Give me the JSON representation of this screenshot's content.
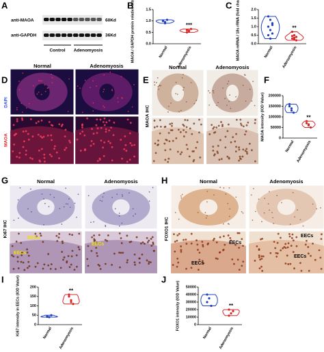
{
  "figure": {
    "letters": [
      "A",
      "B",
      "C",
      "D",
      "E",
      "F",
      "G",
      "H",
      "I",
      "J"
    ],
    "blot": {
      "bands": [
        "anti-MAOA",
        "anti-GAPDH"
      ],
      "sizes": [
        "60Kd",
        "36Kd"
      ],
      "groups": [
        "Control",
        "Adenomyosis"
      ]
    },
    "images": [
      {
        "columns": [
          "Normal",
          "Adenomyosis"
        ],
        "stain": [
          "DAPI",
          "MAOA"
        ]
      },
      {
        "columns": [
          "Normal",
          "Adenomyosis"
        ],
        "stain": [
          "MAOA IHC"
        ]
      },
      {
        "columns": [
          "Normal",
          "Adenomyosis"
        ],
        "stain": [
          "Ki67 IHC"
        ],
        "labels": [
          "EECs",
          "EECs",
          "EECs"
        ]
      },
      {
        "columns": [
          "Normal",
          "Adenomyosis"
        ],
        "stain": [
          "FOXO1 IHC"
        ],
        "labels": [
          "EECs",
          "EECs",
          "EECs",
          "EECs"
        ]
      }
    ]
  },
  "chart_data": [
    {
      "type": "violin",
      "ylabel": "MAOA / GAPDH protein relative intensity",
      "categories": [
        "Normal",
        "Adenomyosis"
      ],
      "colors": [
        "#1f3fbf",
        "#d62728"
      ],
      "values": [
        [
          1.0,
          0.95,
          1.05,
          1.0,
          0.9
        ],
        [
          0.6,
          0.55,
          0.65,
          0.5,
          0.58
        ]
      ],
      "ylim": [
        0,
        1.5
      ],
      "yticks": [
        {
          "value": 0,
          "label": "0.0"
        },
        0.5,
        {
          "value": 1,
          "label": "1.0"
        },
        1.5
      ],
      "annotation": "***"
    },
    {
      "type": "violin",
      "ylabel": "MAOA mRNA / 18s rRNA (fold change)",
      "categories": [
        "Normal",
        "Adenomyosis"
      ],
      "colors": [
        "#1f3fbf",
        "#d62728"
      ],
      "values": [
        [
          1.6,
          1.4,
          1.2,
          1.0,
          0.8,
          0.6,
          0.5,
          0.3,
          1.1
        ],
        [
          0.7,
          0.5,
          0.4,
          0.3,
          0.25,
          0.2,
          0.45,
          0.35
        ]
      ],
      "ylim": [
        0,
        2
      ],
      "yticks": [
        {
          "value": 0,
          "label": "0.0"
        },
        0.5,
        {
          "value": 1,
          "label": "1.0"
        },
        1.5,
        {
          "value": 2,
          "label": "2.0"
        }
      ],
      "annotation": "**"
    },
    {
      "type": "violin",
      "ylabel": "MAOA intensity (IOD Value)",
      "categories": [
        "Normal",
        "Adenomyosis"
      ],
      "colors": [
        "#1f3fbf",
        "#d62728"
      ],
      "values": [
        [
          150000,
          140000,
          120000,
          160000,
          130000
        ],
        [
          70000,
          60000,
          50000,
          80000,
          65000
        ]
      ],
      "ylim": [
        0,
        200000
      ],
      "yticks": [
        0,
        50000,
        100000,
        150000,
        200000
      ],
      "annotation": "**"
    },
    {
      "type": "violin",
      "ylabel": "Ki67 intensity in EECs (IOD Value)",
      "categories": [
        "Normal",
        "Adenomyosis"
      ],
      "colors": [
        "#1f3fbf",
        "#d62728"
      ],
      "values": [
        [
          45,
          40,
          50,
          42
        ],
        [
          150,
          120,
          110,
          160,
          130
        ]
      ],
      "ylim": [
        0,
        200
      ],
      "yticks": [
        0,
        50,
        100,
        150,
        200
      ],
      "annotation": "**"
    },
    {
      "type": "violin",
      "ylabel": "FOXO1 intensity (IOD Value)",
      "categories": [
        "Normal",
        "Adenomyosis"
      ],
      "colors": [
        "#1f3fbf",
        "#d62728"
      ],
      "values": [
        [
          30000,
          35000,
          25000,
          40000
        ],
        [
          20000,
          15000,
          18000,
          12000
        ]
      ],
      "ylim": [
        0,
        50000
      ],
      "yticks": [
        0,
        10000,
        20000,
        30000,
        40000,
        50000
      ],
      "annotation": "**"
    }
  ]
}
